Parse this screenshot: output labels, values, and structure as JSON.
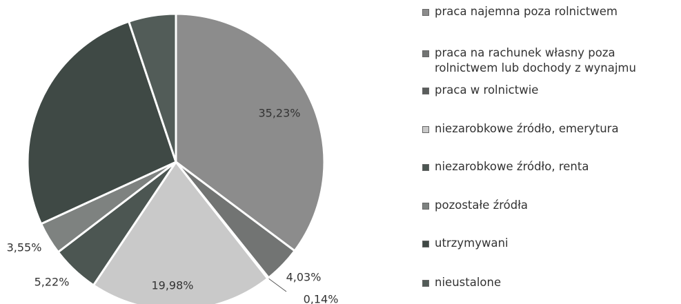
{
  "chart_data": {
    "type": "pie",
    "categories": [
      "praca najemna poza rolnictwem",
      "praca na rachunek własny poza rolnictwem lub dochody z wynajmu",
      "praca w rolnictwie",
      "niezarobkowe źródło, emerytura",
      "niezarobkowe źródło, renta",
      "pozostałe źródła",
      "utrzymywani",
      "nieustalone"
    ],
    "values": [
      35.23,
      4.03,
      0.14,
      19.98,
      5.22,
      3.55,
      26.7,
      5.15
    ],
    "value_labels": [
      "35,23%",
      "4,03%",
      "0,14%",
      "19,98%",
      "5,22%",
      "3,55%",
      null,
      null
    ],
    "colors": [
      "#8c8c8c",
      "#727473",
      "#5a5d5c",
      "#c9c9c9",
      "#4c5652",
      "#7e8280",
      "#3f4945",
      "#525c58"
    ],
    "legend": "right"
  }
}
